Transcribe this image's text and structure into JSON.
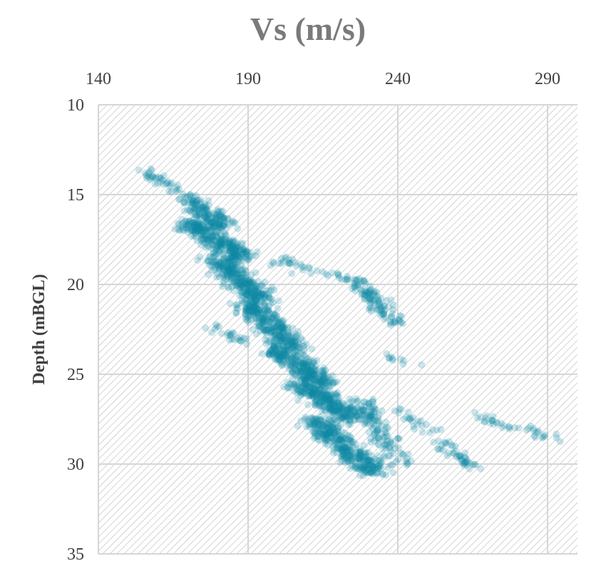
{
  "chart_data": {
    "type": "scatter",
    "title": "Vs (m/s)",
    "xlabel": "",
    "ylabel": "Depth (mBGL)",
    "xlim": [
      140,
      300
    ],
    "ylim": [
      10,
      35
    ],
    "y_inverted": true,
    "x_axis_position": "top",
    "x_ticks": [
      "140",
      "190",
      "240",
      "290"
    ],
    "y_ticks": [
      "10",
      "15",
      "20",
      "25",
      "30",
      "35"
    ],
    "grid": true,
    "legend": "none",
    "series_color": "#0e87a3",
    "clusters": [
      {
        "vs": [
          155,
          172
        ],
        "depth": [
          13.6,
          15.2
        ],
        "spread": 2.5,
        "n": 40
      },
      {
        "vs": [
          170,
          182
        ],
        "depth": [
          15.2,
          16.8
        ],
        "spread": 4,
        "n": 160
      },
      {
        "vs": [
          170,
          188
        ],
        "depth": [
          16.5,
          18.5
        ],
        "spread": 5,
        "n": 320
      },
      {
        "vs": [
          180,
          195
        ],
        "depth": [
          18.5,
          21.0
        ],
        "spread": 5,
        "n": 320
      },
      {
        "vs": [
          190,
          205
        ],
        "depth": [
          21.0,
          23.5
        ],
        "spread": 5,
        "n": 320
      },
      {
        "vs": [
          200,
          215
        ],
        "depth": [
          23.5,
          25.5
        ],
        "spread": 5,
        "n": 300
      },
      {
        "vs": [
          208,
          225
        ],
        "depth": [
          25.5,
          27.5
        ],
        "spread": 5,
        "n": 320
      },
      {
        "vs": [
          212,
          232
        ],
        "depth": [
          27.5,
          30.5
        ],
        "spread": 5,
        "n": 380
      },
      {
        "vs": [
          228,
          240
        ],
        "depth": [
          26.5,
          30.0
        ],
        "spread": 4,
        "n": 140
      },
      {
        "vs": [
          226,
          240
        ],
        "depth": [
          19.8,
          22.2
        ],
        "spread": 3,
        "n": 110
      },
      {
        "vs": [
          198,
          225
        ],
        "depth": [
          18.5,
          19.8
        ],
        "spread": 3,
        "n": 40
      },
      {
        "vs": [
          240,
          265
        ],
        "depth": [
          26.8,
          30.2
        ],
        "spread": 3,
        "n": 70
      },
      {
        "vs": [
          265,
          295
        ],
        "depth": [
          27.4,
          28.6
        ],
        "spread": 2,
        "n": 40
      },
      {
        "vs": [
          176,
          190
        ],
        "depth": [
          22.2,
          23.2
        ],
        "spread": 2,
        "n": 25
      },
      {
        "vs": [
          236,
          250
        ],
        "depth": [
          24.0,
          24.5
        ],
        "spread": 1,
        "n": 10
      }
    ]
  }
}
